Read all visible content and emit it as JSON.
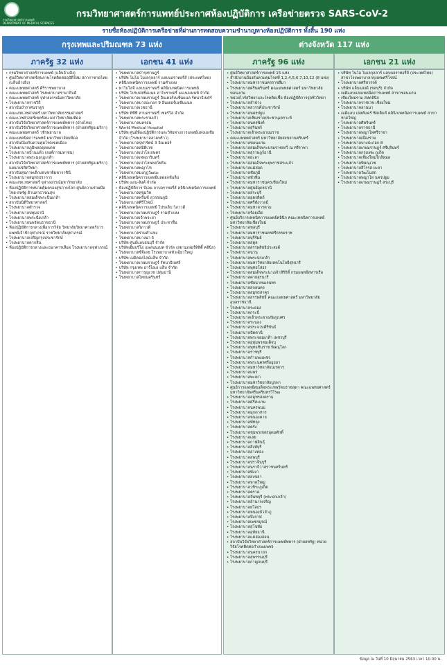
{
  "header": {
    "title": "กรมวิทยาศาสตร์การแพทย์ประกาศห้องปฏิบัติการ เครือข่ายตรวจ SARS-CoV-2",
    "logo_text": "กรมวิทยาศาสตร์การแพทย์",
    "logo_subtext": "DEPARTMENT OF MEDICAL SCIENCES",
    "subtitle": "รายชื่อห้องปฏิบัติการเครือข่ายที่ผ่านการทดสอบความชำนาญทางห้องปฏิบัติการ ทั้งสิ้น 190 แห่ง"
  },
  "regions": [
    {
      "title": "กรุงเทพและปริมณฑล 73 แห่ง",
      "groups": [
        {
          "title": "ภาครัฐ 32 แห่ง",
          "items": [
            "กรมวิทยาศาสตร์การแพทย์ (แล็บอ้างอิง)",
            "ศูนย์วิทยาศาสตร์สุขภาพโรคติดต่ออุบัติใหม่ สภากาชาดไทย (แล็บอ้างอิง)",
            "คณะแพทยศาสตร์ ศิริราชพยาบาล",
            "คณะแพทยศาสตร์ โรงพยาบาลรามาธิบดี",
            "คณะแพทยศาสตร์ จุฬาลงกรณ์มหาวิทยาลัย",
            "โรงพยาบาลราชวิถี",
            "สถาบันบำราศนราดูร",
            "คณะสหเวชศาสตร์ มหาวิทยาลัยธรรมศาสตร์",
            "คณะเวชศาสตร์เขตร้อน มหาวิทยาลัยมหิดล",
            "สถาบันวิจัยวิทยาศาสตร์การแพทย์ทหาร (ฝ่ายไทย)",
            "สถาบันวิจัยวิทยาศาสตร์การแพทย์ทหาร (ฝ่ายสหรัฐอเมริกา)",
            "คณะแพทยศาสตร์ วชิรพยาบาล",
            "คณะเทคนิคการแพทย์ มหาวิทยาลัยมหิดล",
            "สถาบันป้องกันควบคุมโรคเขตเมือง",
            "โรงพยาบาลภูมิพลอดุลยเดช",
            "โรงพยาบาลบ้านแพ้ว (องค์การมหาชน)",
            "โรงพยาบาลพระมงกุฎเกล้า",
            "สถาบันวิจัยวิทยาศาสตร์การแพทย์ทหาร (ฝ่ายสหรัฐอเมริกา) แผนกปรสิตวิทยา",
            "สถาบันสุขภาพเด็กแห่งชาติมหาราชินี",
            "โรงพยาบาลสมุทรปราการ",
            "คณะสหเวชศาสตร์ จุฬาลงกรณ์มหาวิทยาลัย",
            "ห้องปฏิบัติการหน่วยคุ้มครองสุขภาพโลก ศูนย์ความร่วมมือไทย-สหรัฐ ด้านสาธารณสุข",
            "โรงพยาบาลสมเด็จพระปิ่นเกล้า",
            "สถาบันนิติวิทยาศาสตร์",
            "โรงพยาบาลตำรวจ",
            "โรงพยาบาลปทุมธานี",
            "โรงพยาบาลพระนั่งเกล้า",
            "โรงพยาบาลนพรัตนราชธานี",
            "ห้องปฏิบัติการกลางเพื่อการวิจัย วิทยาลัยวิทยาศาสตร์การแพทย์เจ้าฟ้าจุฬาภรณ์ ราชวิทยาลัยจุฬาภรณ์",
            "โรงพยาบาลเจริญกรุงประชารักษ์",
            "โรงพยาบาลตากสิน",
            "ห้องปฏิบัติการกลางและธนาคารเลือด โรงพยาบาลจุฬาภรณ์"
          ]
        },
        {
          "title": "เอกชน 41 แห่ง",
          "items": [
            "โรงพยาบาลบำรุงราษฎร์",
            "บริษัท โนโอ โมเลกุลลาร์ แลบบอราทอรี่ส์ (ประเทศไทย)",
            "คลินิกเทคนิคการแพทย์ รามคำแหง",
            "พาโธโลจี แลบบอราทอรี่ คลินิกเทคนิคการแพทย์",
            "บริษัท โปรเฟสชั่นแนล ลาโบราทอรี่ แมเนจเมนท์ จำกัด",
            "โรงพยาบาลเกษมราษฎร์ อินเตอร์เนชั่นแนล รัตนาธิเบศร์",
            "โรงพยาบาลบางปะกอก 9 อินเตอร์เนชั่นแนล",
            "โรงพยาบาลเวชธานี",
            "บริษัท พีซีที ลาบอราทอรี่ เซอร์วิส จำกัด",
            "โรงพยาบาลพระรามเก้า",
            "โรงพยาบาลนครธน",
            "World Medical Hospital",
            "บริษัท ศูนย์ห้องปฏิบัติการและวิจัยทางการแพทย์แห่งเอเชีย จำกัด (โรงพยาบาลลาดพร้าว)",
            "โรงพยาบาลจุฬารัตน์ 3 อินเตอร์",
            "โรงพยาบาลสมิติเวช",
            "โรงพยาบาลเปาโลเกษตร",
            "โรงพยาบาลเทพธารินทร์",
            "โรงพยาบาลเปาโลพหลโยธิน",
            "โรงพยาบาลพญาไท",
            "โรงพยาบาลมงกุฎวัฒนะ",
            "คลินิกเทคนิคการแพทย์บลดอกซ์แล็บ",
            "บริษัท แอน-ลิงค์ จำกัด",
            "ห้องปฏิบัติการ บีเอน ลาบอราทอรี่ส์ คลินิกเทคนิคการแพทย์",
            "โรงพยาบาลสุขุมวิท",
            "โรงพยาบาลพริ้นซ์ สุวรรณภูมิ",
            "โรงพยาบาลศิริโรจน์",
            "คลินิกเทคนิคการแพทย์ โปรแล็บ วิภาวดี",
            "โรงพยาบาลเกษมราษฎร์ รามคำแหง",
            "โรงพยาบาลเจ้าพระยา",
            "โรงพยาบาลเกษมราษฎร์ ประชาชื่น",
            "โรงพยาบาลวิภาวดี",
            "โรงพยาบาลรามคำแหง",
            "โรงพยาบาลบางนา 5",
            "บริษัท ศูนย์แลบธนบุรี จำกัด",
            "บริษัทเอ็มบริโอ แพลนนเนท จำกัด (สยามเฟอร์ทิลิตี้ คลินิก)",
            "โรงพยาบาลซีจีเอช โรงพยาบาลหัวเฉียวใหญ่",
            "บริษัท เมดิคอลไลน์แล็บ จำกัด",
            "โรงพยาบาลเกษมราษฎร์ รัตนาธิเบศร์",
            "บริษัท กรุงเทพ อาร์ไอเอ แล็บ จำกัด",
            "โรงพยาบาลการุญเวช ปทุมธานี",
            "โรงพยาบาลไทยนครินทร์"
          ]
        }
      ]
    },
    {
      "title": "ต่างจังหวัด 117 แห่ง",
      "groups": [
        {
          "title": "ภาครัฐ 96 แห่ง",
          "items": [
            "ศูนย์วิทยาศาสตร์การแพทย์ 15 แห่ง",
            "สำนักงานป้องกันควบคุมโรคที่ 1,2,4,5,6,7,10,12 (8 แห่ง)",
            "โรงพยาบาลมหาราชนครราชสีมา",
            "โรงพยาบาลศรีนครินทร์ คณะแพทยศาสตร์ มหาวิทยาลัยขอนแก่น",
            "หน่วยไวรัสวิทยาและโรคติดเชื้อ ห้องปฏิบัติการจุลชีววิทยา",
            "โรงพยาบาลลำปาง",
            "โรงพยาบาลสวรรค์ประชารักษ์",
            "โรงพยาบาลนครปฐม",
            "โรงพยาบาลเชียงรายประชานุเคราะห์",
            "โรงพยาบาลนครพิงค์",
            "โรงพยาบาลสุรินทร์",
            "โรงพยาบาลเจ้าพระยายมราช",
            "คณะแพทยศาสตร์ มหาวิทยาลัยสงขลานครินทร์",
            "โรงพยาบาลขอนแก่น",
            "โรงพยาบาลสมเด็จพระบรมราชเทวี ณ ศรีราชา",
            "โรงพยาบาลสุราษฎร์ธานี",
            "โรงพยาบาลยะลา",
            "โรงพยาบาลสมเด็จพระยุพราชสระแก้ว",
            "โรงพยาบาลแม่สอด",
            "โรงพยาบาลชัยภูมิ",
            "โรงพยาบาลหัวหิน",
            "โรงพยาบาลมหาราชนครเชียงใหม่",
            "โรงพยาบาลศูนย์อุดรธานี",
            "โรงพยาบาลสระบุรี",
            "โรงพยาบาลอุตรดิตถ์",
            "โรงพยาบาลศรีสังวาลย์",
            "โรงพยาบาลมหาสารคาม",
            "โรงพยาบาลร้อยเอ็ด",
            "ศูนย์บริการเทคนิคการแพทย์คลินิก คณะเทคนิคการแพทย์ มหาวิทยาลัยเชียงใหม่",
            "โรงพยาบาลชลบุรี",
            "โรงพยาบาลมหาราชนครศรีธรรมราช",
            "โรงพยาบาลบุรีรัมย์",
            "โรงพยาบาลสตูล",
            "โรงพยาบาลสรรพสิทธิประสงค์",
            "โรงพยาบาลน่าน",
            "โรงพยาบาลพระปกเกล้า",
            "โรงพยาบาลมหาวิทยาลัยเทคโนโลยีสุรนารี",
            "โรงพยาบาลพุทธโสธร",
            "โรงพยาบาลสมเด็จพระนางเจ้าสิริกิติ์ กรมแพทย์ทหารเรือ",
            "โรงพยาบาลค่ายสุรนารี",
            "โรงพยาบาลชัยนาทนเรนทร",
            "โรงพยาบาลสกลนคร",
            "โรงพยาบาลสมุทรสาคร",
            "โรงพยาบาลสรรพสิทธิ์ คณะแพทยศาสตร์ มหาวิทยาลัยอุบลราชธานี",
            "โรงพยาบาลระยอง",
            "โรงพยาบาลกระบี่",
            "โรงพยาบาลเจ้าพระยาอภัยภูเบศร",
            "โรงพยาบาลระนอง",
            "โรงพยาบาลประจวบคีรีขันธ์",
            "โรงพยาบาลปัตตานี",
            "โรงพยาบาลพระจอมเกล้า เพชรบุรี",
            "โรงพยาบาลอุทุมพรสมเด็จบุ",
            "โรงพยาบาลพุทธชินราช พิษณุโลก",
            "โรงพยาบาลราชบุรี",
            "โรงพยาบาลกำแพงเพชร",
            "โรงพยาบาลพระนครศรีอยุธยา",
            "โรงพยาบาลมหาวิทยาลัยนเรศวร",
            "โรงพยาบาลแพร่",
            "โรงพยาบาลพะเยา",
            "โรงพยาบาลมหาวิทยาลัยบูรพา",
            "ศูนย์การแพทย์สมเด็จพระเทพรัตนราชสุดา คณะแพทยศาสตร์ มหาวิทยาลัยศรีนครินทรวิโรฒ",
            "โรงพยาบาลสมุทรสงคราม",
            "โรงพยาบาลศรีสะเกษ",
            "โรงพยาบาลนครพนม",
            "โรงพยาบาลมุกดาหาร",
            "โรงพยาบาลหนองคาย",
            "โรงพยาบาลพัทลุง",
            "โรงพยาบาลตรัง",
            "โรงพยาบาลชุมพรเขตรอุดมศักดิ์",
            "โรงพยาบาลเลย",
            "โรงพยาบาลกาฬสินธุ์",
            "โรงพยาบาลสิงห์บุรี",
            "โรงพยาบาลอ่างทอง",
            "โรงพยาบาลลพบุรี",
            "โรงพยาบาลปราจีนบุรี",
            "โรงพยาบาลนราธิวาสราชนครินทร์",
            "โรงพยาบาลพังงา",
            "โรงพยาบาลสงขลา",
            "โรงพยาบาลหาดใหญ่",
            "โรงพยาบาลวชิระภูเก็ต",
            "โรงพยาบาลตราด",
            "โรงพยาบาลจันทบุรี (พระปกเกล้า)",
            "โรงพยาบาลอำนาจเจริญ",
            "โรงพยาบาลยโสธร",
            "โรงพยาบาลหนองบัวลำภู",
            "โรงพยาบาลบึงกาฬ",
            "โรงพยาบาลเพชรบูรณ์",
            "โรงพยาบาลสุโขทัย",
            "โรงพยาบาลอุทัยธานี",
            "โรงพยาบาลแม่ฮ่องสอน",
            "สถาบันวิจัยวิทยาศาสตร์การแพทย์ทหาร (ฝ่ายสหรัฐ) หน่วยวิจัยโรคติดต่อกำแพงเพชร",
            "โรงพยาบาลนครนายก",
            "โรงพยาบาลสุพรรณบุรี",
            "โรงพยาบาลกาญจนบุรี"
          ]
        },
        {
          "title": "เอกชน 21 แห่ง",
          "items": [
            "บริษัท โนโอ โมเลกุลลาร์ แลบบอราทอรี่ส์ (ประเทศไทย) สาขาโรงพยาบาลกรุงเทพศรีโรจน์",
            "โรงพยาบาลศรีสวรรค์",
            "บริษัท แล็บแสงดี (ชลบุรี) จำกัด",
            "เมดิแลบแลบเทคนิคการแพทย์ สาขาขอนแก่น",
            "เชียงใหม่ราม สหคลินิก",
            "โรงพยาบาลราชเวช เชียงใหม่",
            "โรงพยาบาลลานนา",
            "เมดิแลบ เฮลท์แคร์ ซิสเต็มส์ คลินิกเทคนิคการแพทย์ สาขาหาดใหญ่",
            "โรงพยาบาลศิครินทร์",
            "โรงพยาบาลราชธานี",
            "โรงพยาบาลพญาไทศรีราชา",
            "โรงพยาบาลเมืองราม",
            "โรงพยาบาลบางปะกอก 8",
            "โรงพยาบาลเกษมราษฎร์ ศรีบุรินทร์",
            "โรงพยาบาลกรุงเทพ ภูเก็ต",
            "โรงพยาบาลเชียงใหม่ใกล้หมอ",
            "โรงพยาบาลพิษณุเวช",
            "โรงพยาบาลสิโรรส ยะลา",
            "โรงพยาบาลวัฒโนสถ",
            "โรงพยาบาลพญาไท นครปฐม",
            "โรงพยาบาลเกษมราษฎร์ สระบุรี"
          ]
        }
      ]
    }
  ],
  "footer": {
    "note": "ข้อมูล ณ วันที่ 10 มิถุนายน 2563 เวลา 10.00 น."
  }
}
